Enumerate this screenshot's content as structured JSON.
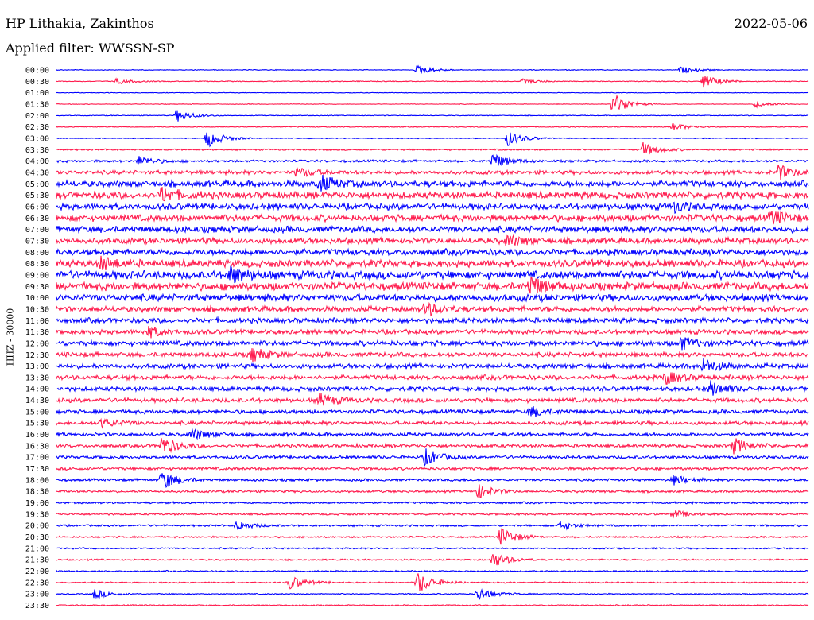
{
  "header": {
    "station": "HP Lithakia, Zakinthos",
    "date": "2022-05-06",
    "filter": "Applied filter: WWSSN-SP"
  },
  "chart_data": {
    "type": "line",
    "title": "HP Lithakia, Zakinthos",
    "ylabel": "HHZ - 30000",
    "xlabel": "",
    "row_labels": [
      "00:00",
      "00:30",
      "01:00",
      "01:30",
      "02:00",
      "02:30",
      "03:00",
      "03:30",
      "04:00",
      "04:30",
      "05:00",
      "05:30",
      "06:00",
      "06:30",
      "07:00",
      "07:30",
      "08:00",
      "08:30",
      "09:00",
      "09:30",
      "10:00",
      "10:30",
      "11:00",
      "11:30",
      "12:00",
      "12:30",
      "13:00",
      "13:30",
      "14:00",
      "14:30",
      "15:00",
      "15:30",
      "16:00",
      "16:30",
      "17:00",
      "17:30",
      "18:00",
      "18:30",
      "19:00",
      "19:30",
      "20:00",
      "20:30",
      "21:00",
      "21:30",
      "22:00",
      "22:30",
      "23:00",
      "23:30"
    ],
    "noise_level": [
      0.4,
      0.45,
      0.3,
      0.35,
      0.4,
      0.45,
      0.45,
      0.8,
      1.2,
      2.0,
      3.2,
      3.5,
      3.2,
      3.4,
      3.3,
      3.0,
      3.2,
      3.8,
      4.2,
      4.0,
      3.6,
      2.8,
      2.6,
      2.4,
      2.6,
      2.4,
      2.5,
      2.4,
      2.3,
      2.2,
      2.0,
      1.9,
      1.8,
      1.7,
      1.6,
      1.5,
      1.3,
      1.2,
      1.0,
      1.0,
      1.0,
      0.9,
      0.8,
      0.8,
      0.7,
      0.7,
      0.6,
      0.6
    ],
    "series": [
      {
        "colors": [
          "#0000ff",
          "#ff1a4d"
        ]
      }
    ],
    "events": [
      {
        "row": 0,
        "t": 0.48,
        "amp": 6
      },
      {
        "row": 0,
        "t": 0.83,
        "amp": 4
      },
      {
        "row": 1,
        "t": 0.08,
        "amp": 4
      },
      {
        "row": 1,
        "t": 0.62,
        "amp": 3
      },
      {
        "row": 1,
        "t": 0.86,
        "amp": 9
      },
      {
        "row": 3,
        "t": 0.74,
        "amp": 14
      },
      {
        "row": 3,
        "t": 0.93,
        "amp": 4
      },
      {
        "row": 4,
        "t": 0.16,
        "amp": 8
      },
      {
        "row": 5,
        "t": 0.82,
        "amp": 5
      },
      {
        "row": 6,
        "t": 0.2,
        "amp": 12
      },
      {
        "row": 6,
        "t": 0.6,
        "amp": 10
      },
      {
        "row": 7,
        "t": 0.78,
        "amp": 9
      },
      {
        "row": 8,
        "t": 0.58,
        "amp": 10
      },
      {
        "row": 8,
        "t": 0.11,
        "amp": 6
      },
      {
        "row": 9,
        "t": 0.32,
        "amp": 6
      },
      {
        "row": 9,
        "t": 0.96,
        "amp": 9
      },
      {
        "row": 10,
        "t": 0.35,
        "amp": 10
      },
      {
        "row": 11,
        "t": 0.14,
        "amp": 9
      },
      {
        "row": 12,
        "t": 0.82,
        "amp": 7
      },
      {
        "row": 13,
        "t": 0.95,
        "amp": 8
      },
      {
        "row": 15,
        "t": 0.6,
        "amp": 7
      },
      {
        "row": 17,
        "t": 0.06,
        "amp": 8
      },
      {
        "row": 18,
        "t": 0.23,
        "amp": 10
      },
      {
        "row": 19,
        "t": 0.63,
        "amp": 12
      },
      {
        "row": 21,
        "t": 0.49,
        "amp": 8
      },
      {
        "row": 23,
        "t": 0.12,
        "amp": 7
      },
      {
        "row": 24,
        "t": 0.83,
        "amp": 8
      },
      {
        "row": 25,
        "t": 0.26,
        "amp": 8
      },
      {
        "row": 26,
        "t": 0.86,
        "amp": 9
      },
      {
        "row": 27,
        "t": 0.81,
        "amp": 8
      },
      {
        "row": 28,
        "t": 0.87,
        "amp": 9
      },
      {
        "row": 29,
        "t": 0.35,
        "amp": 8
      },
      {
        "row": 30,
        "t": 0.63,
        "amp": 7
      },
      {
        "row": 31,
        "t": 0.06,
        "amp": 6
      },
      {
        "row": 32,
        "t": 0.18,
        "amp": 7
      },
      {
        "row": 33,
        "t": 0.14,
        "amp": 12
      },
      {
        "row": 33,
        "t": 0.9,
        "amp": 10
      },
      {
        "row": 34,
        "t": 0.49,
        "amp": 10
      },
      {
        "row": 36,
        "t": 0.14,
        "amp": 12
      },
      {
        "row": 36,
        "t": 0.82,
        "amp": 6
      },
      {
        "row": 37,
        "t": 0.56,
        "amp": 9
      },
      {
        "row": 39,
        "t": 0.82,
        "amp": 5
      },
      {
        "row": 40,
        "t": 0.24,
        "amp": 6
      },
      {
        "row": 40,
        "t": 0.67,
        "amp": 5
      },
      {
        "row": 41,
        "t": 0.59,
        "amp": 12
      },
      {
        "row": 43,
        "t": 0.58,
        "amp": 10
      },
      {
        "row": 45,
        "t": 0.31,
        "amp": 9
      },
      {
        "row": 45,
        "t": 0.48,
        "amp": 14
      },
      {
        "row": 46,
        "t": 0.05,
        "amp": 6
      },
      {
        "row": 46,
        "t": 0.56,
        "amp": 9
      }
    ]
  }
}
